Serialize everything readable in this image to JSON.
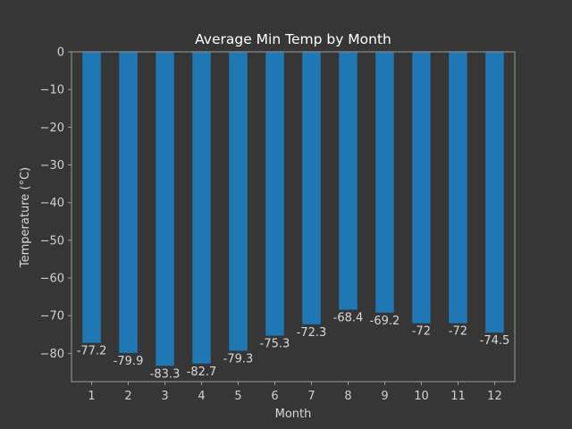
{
  "chart_data": {
    "type": "bar",
    "title": "Average Min Temp by Month",
    "xlabel": "Month",
    "ylabel": "Temperature (°C)",
    "categories": [
      "1",
      "2",
      "3",
      "4",
      "5",
      "6",
      "7",
      "8",
      "9",
      "10",
      "11",
      "12"
    ],
    "values": [
      -77.2,
      -79.9,
      -83.3,
      -82.7,
      -79.3,
      -75.3,
      -72.3,
      -68.4,
      -69.2,
      -72,
      -72,
      -74.5
    ],
    "data_labels": [
      "-77.2",
      "-79.9",
      "-83.3",
      "-82.7",
      "-79.3",
      "-75.3",
      "-72.3",
      "-68.4",
      "-69.2",
      "-72",
      "-72",
      "-74.5"
    ],
    "yticks": [
      0,
      -10,
      -20,
      -30,
      -40,
      -50,
      -60,
      -70,
      -80
    ],
    "ytick_labels": [
      "0",
      "−10",
      "−20",
      "−30",
      "−40",
      "−50",
      "−60",
      "−70",
      "−80"
    ],
    "ylim": [
      -87.5,
      0
    ],
    "grid": false,
    "legend": "none",
    "colors": {
      "background": "#363636",
      "bar": "#1f77b4",
      "axes": "#9a9a9a",
      "text": "#d8d8d8",
      "title": "#ffffff"
    }
  }
}
